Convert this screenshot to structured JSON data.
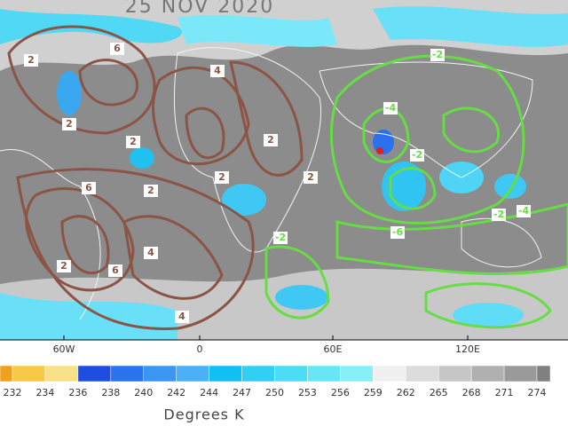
{
  "title": "25 NOV 2020",
  "longitude_labels": [
    "60W",
    "0",
    "60E",
    "120E"
  ],
  "contours": {
    "brown": {
      "color": "#8a5546",
      "labels": [
        "2",
        "6",
        "4",
        "2",
        "2",
        "2",
        "2",
        "6",
        "2",
        "2",
        "4",
        "6",
        "2",
        "4"
      ]
    },
    "green": {
      "color": "#66dd44",
      "labels": [
        "-2",
        "-4",
        "-2",
        "-6",
        "-2",
        "-4",
        "-2"
      ]
    }
  },
  "colorbar": {
    "ticks": [
      232,
      234,
      236,
      238,
      240,
      242,
      244,
      247,
      250,
      253,
      256,
      259,
      262,
      265,
      268,
      271,
      274
    ],
    "colors": [
      "#f0a020",
      "#f8c848",
      "#f8e088",
      "#1e4ee0",
      "#2a74f0",
      "#3c96f0",
      "#4cb0f4",
      "#10c0f0",
      "#30d0f4",
      "#4cdcf6",
      "#68e6f8",
      "#88eef8",
      "#f0f0f0",
      "#dcdcdc",
      "#c6c6c6",
      "#b0b0b0",
      "#9a9a9a",
      "#808080"
    ],
    "title": "Degrees K"
  }
}
